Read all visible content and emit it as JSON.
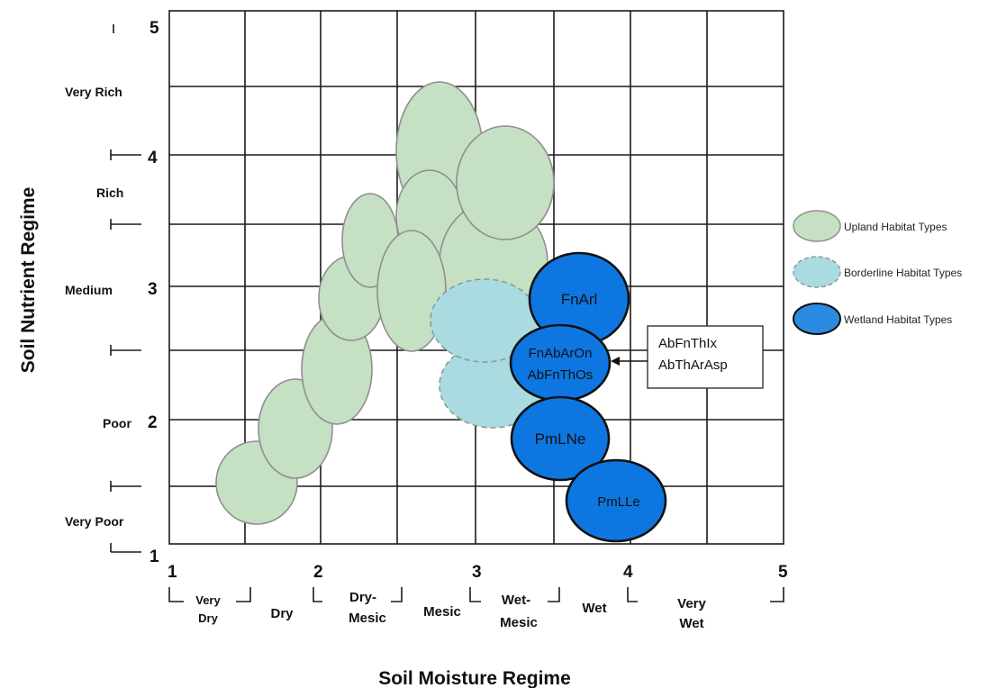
{
  "axes": {
    "y_title": "Soil Nutrient Regime",
    "x_title": "Soil Moisture Regime",
    "y_numbers": [
      "1",
      "2",
      "3",
      "4",
      "5"
    ],
    "x_numbers": [
      "1",
      "2",
      "3",
      "4",
      "5"
    ],
    "nutrient_classes": [
      "Very Poor",
      "Poor",
      "Medium",
      "Rich",
      "Very Rich"
    ],
    "moisture_classes": {
      "very_dry": [
        "Very",
        "Dry"
      ],
      "dry": "Dry",
      "dry_mesic": [
        "Dry-",
        "Mesic"
      ],
      "mesic": "Mesic",
      "wet_mesic": [
        "Wet-",
        "Mesic"
      ],
      "wet": "Wet",
      "very_wet": [
        "Very",
        "Wet"
      ]
    }
  },
  "legend": {
    "upland": "Upland Habitat Types",
    "borderline": "Borderline Habitat Types",
    "wetland": "Wetland Habitat Types"
  },
  "wetland_labels": {
    "fnarl": "FnArl",
    "fnabaron": "FnAbArOn",
    "abfnthos": "AbFnThOs",
    "pmlne": "PmLNe",
    "pmlle": "PmLLe"
  },
  "callout": {
    "line1": "AbFnThIx",
    "line2": "AbThArAsp"
  },
  "colors": {
    "upland_fill": "#c6e0c4",
    "upland_stroke": "#8f8f8f",
    "borderline_fill": "#a9dbe0",
    "borderline_stroke": "#8a9aa0",
    "wetland_fill": "#0e76e0",
    "wetland_stroke": "#111111"
  }
}
